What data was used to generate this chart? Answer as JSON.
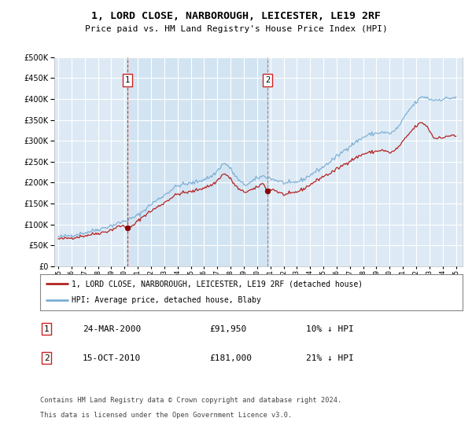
{
  "title": "1, LORD CLOSE, NARBOROUGH, LEICESTER, LE19 2RF",
  "subtitle": "Price paid vs. HM Land Registry's House Price Index (HPI)",
  "legend_line1": "1, LORD CLOSE, NARBOROUGH, LEICESTER, LE19 2RF (detached house)",
  "legend_line2": "HPI: Average price, detached house, Blaby",
  "footnote1": "Contains HM Land Registry data © Crown copyright and database right 2024.",
  "footnote2": "This data is licensed under the Open Government Licence v3.0.",
  "table_row1_num": "1",
  "table_row1_date": "24-MAR-2000",
  "table_row1_price": "£91,950",
  "table_row1_hpi": "10% ↓ HPI",
  "table_row2_num": "2",
  "table_row2_date": "15-OCT-2010",
  "table_row2_price": "£181,000",
  "table_row2_hpi": "21% ↓ HPI",
  "hpi_color": "#7aadd4",
  "price_color": "#b22222",
  "marker_color": "#8b0000",
  "vline1_color": "#cc3333",
  "vline2_color": "#888888",
  "annotation_box_color": "#cc2222",
  "bg_plot_color": "#ddeaf5",
  "shade_color": "#cce0f0",
  "grid_color": "#ffffff",
  "ylim": [
    0,
    500000
  ],
  "yticks": [
    0,
    50000,
    100000,
    150000,
    200000,
    250000,
    300000,
    350000,
    400000,
    450000,
    500000
  ],
  "xstart_year": 1995,
  "xend_year": 2025,
  "sale1_year": 2000.22,
  "sale2_year": 2010.79,
  "sale1_price": 91950,
  "sale2_price": 181000
}
